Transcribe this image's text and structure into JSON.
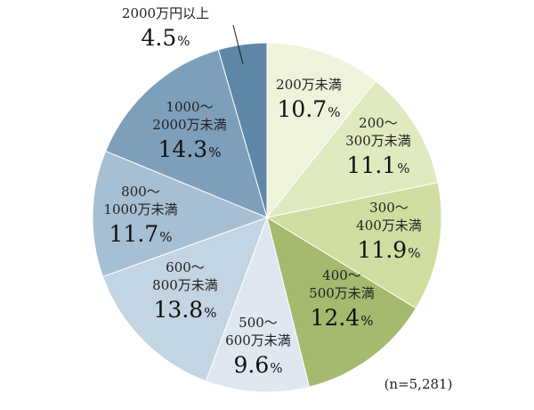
{
  "chart_data": {
    "type": "pie",
    "unit": "%",
    "note": "(n=5,281)",
    "slices": [
      {
        "label": [
          "200万未満"
        ],
        "value": 10.7,
        "color": "#eef3dc"
      },
      {
        "label": [
          "200～",
          "300万未満"
        ],
        "value": 11.1,
        "color": "#e0eabf"
      },
      {
        "label": [
          "300～",
          "400万未満"
        ],
        "value": 11.9,
        "color": "#cfdea0"
      },
      {
        "label": [
          "400～",
          "500万未満"
        ],
        "value": 12.4,
        "color": "#a4ba6e"
      },
      {
        "label": [
          "500～",
          "600万未満"
        ],
        "value": 9.6,
        "color": "#dfe7f1"
      },
      {
        "label": [
          "600～",
          "800万未満"
        ],
        "value": 13.8,
        "color": "#c3d4e2"
      },
      {
        "label": [
          "800～",
          "1000万未満"
        ],
        "value": 11.7,
        "color": "#a6bfd2"
      },
      {
        "label": [
          "1000～",
          "2000万未満"
        ],
        "value": 14.3,
        "color": "#7d9fba"
      },
      {
        "label": [
          "2000万円以上"
        ],
        "value": 4.5,
        "color": "#5e86a6"
      }
    ]
  }
}
